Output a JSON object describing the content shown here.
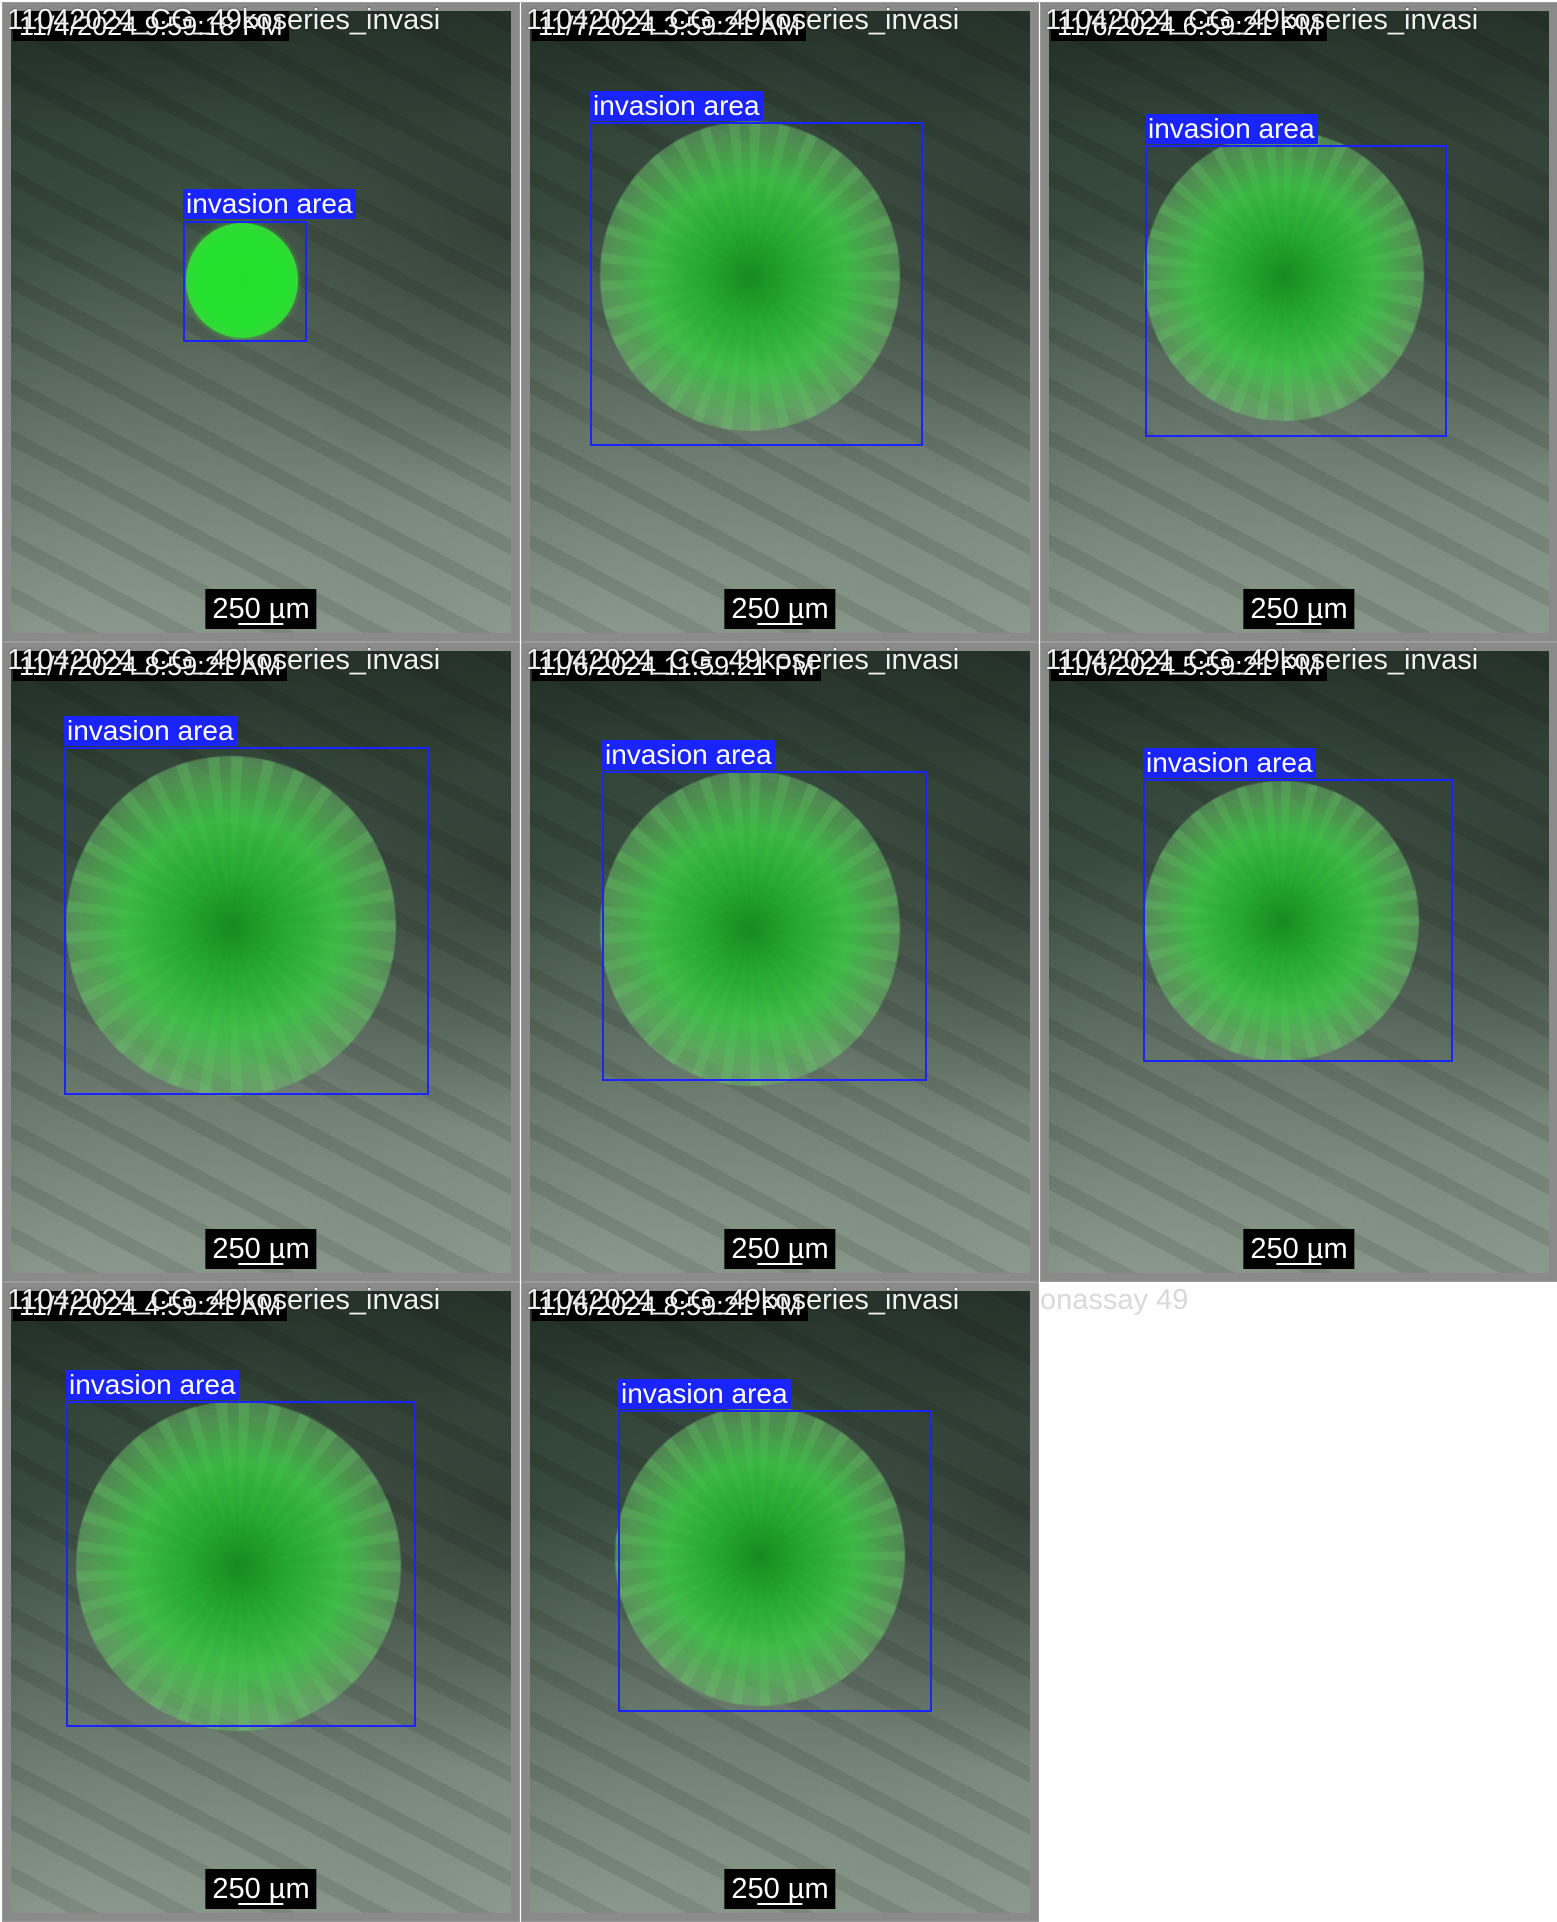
{
  "tiles": [
    {
      "file_label": "11042024_CG_49koseries_invasi",
      "time_label": "11/4/2024 9:59:18 PM",
      "bbox_label": "invasion area",
      "scale_label": "250 µm"
    },
    {
      "file_label": "11042024_CG_49koseries_invasi",
      "time_label": "11/7/2024 3:59:21 AM",
      "bbox_label": "invasion area",
      "scale_label": "250 µm"
    },
    {
      "file_label": "11042024_CG_49koseries_invasi",
      "time_label": "11/6/2024 6:59:21 PM",
      "bbox_label": "invasion area",
      "scale_label": "250 µm"
    },
    {
      "file_label": "11042024_CG_49koseries_invasi",
      "time_label": "11/7/2024 8:59:21 AM",
      "bbox_label": "invasion area",
      "scale_label": "250 µm"
    },
    {
      "file_label": "11042024_CG_49koseries_invasi",
      "time_label": "11/6/2024 11:59:21 PM",
      "bbox_label": "invasion area",
      "scale_label": "250 µm"
    },
    {
      "file_label": "11042024_CG_49koseries_invasi",
      "time_label": "11/6/2024 5:59:21 PM",
      "bbox_label": "invasion area",
      "scale_label": "250 µm"
    },
    {
      "file_label": "11042024_CG_49koseries_invasi",
      "time_label": "11/7/2024 4:59:21 AM",
      "bbox_label": "invasion area",
      "scale_label": "250 µm"
    },
    {
      "file_label": "11042024_CG_49koseries_invasi",
      "time_label": "11/6/2024 8:59:21 PM",
      "bbox_label": "invasion area",
      "scale_label": "250 µm"
    }
  ],
  "trailing_label": "onassay 49"
}
